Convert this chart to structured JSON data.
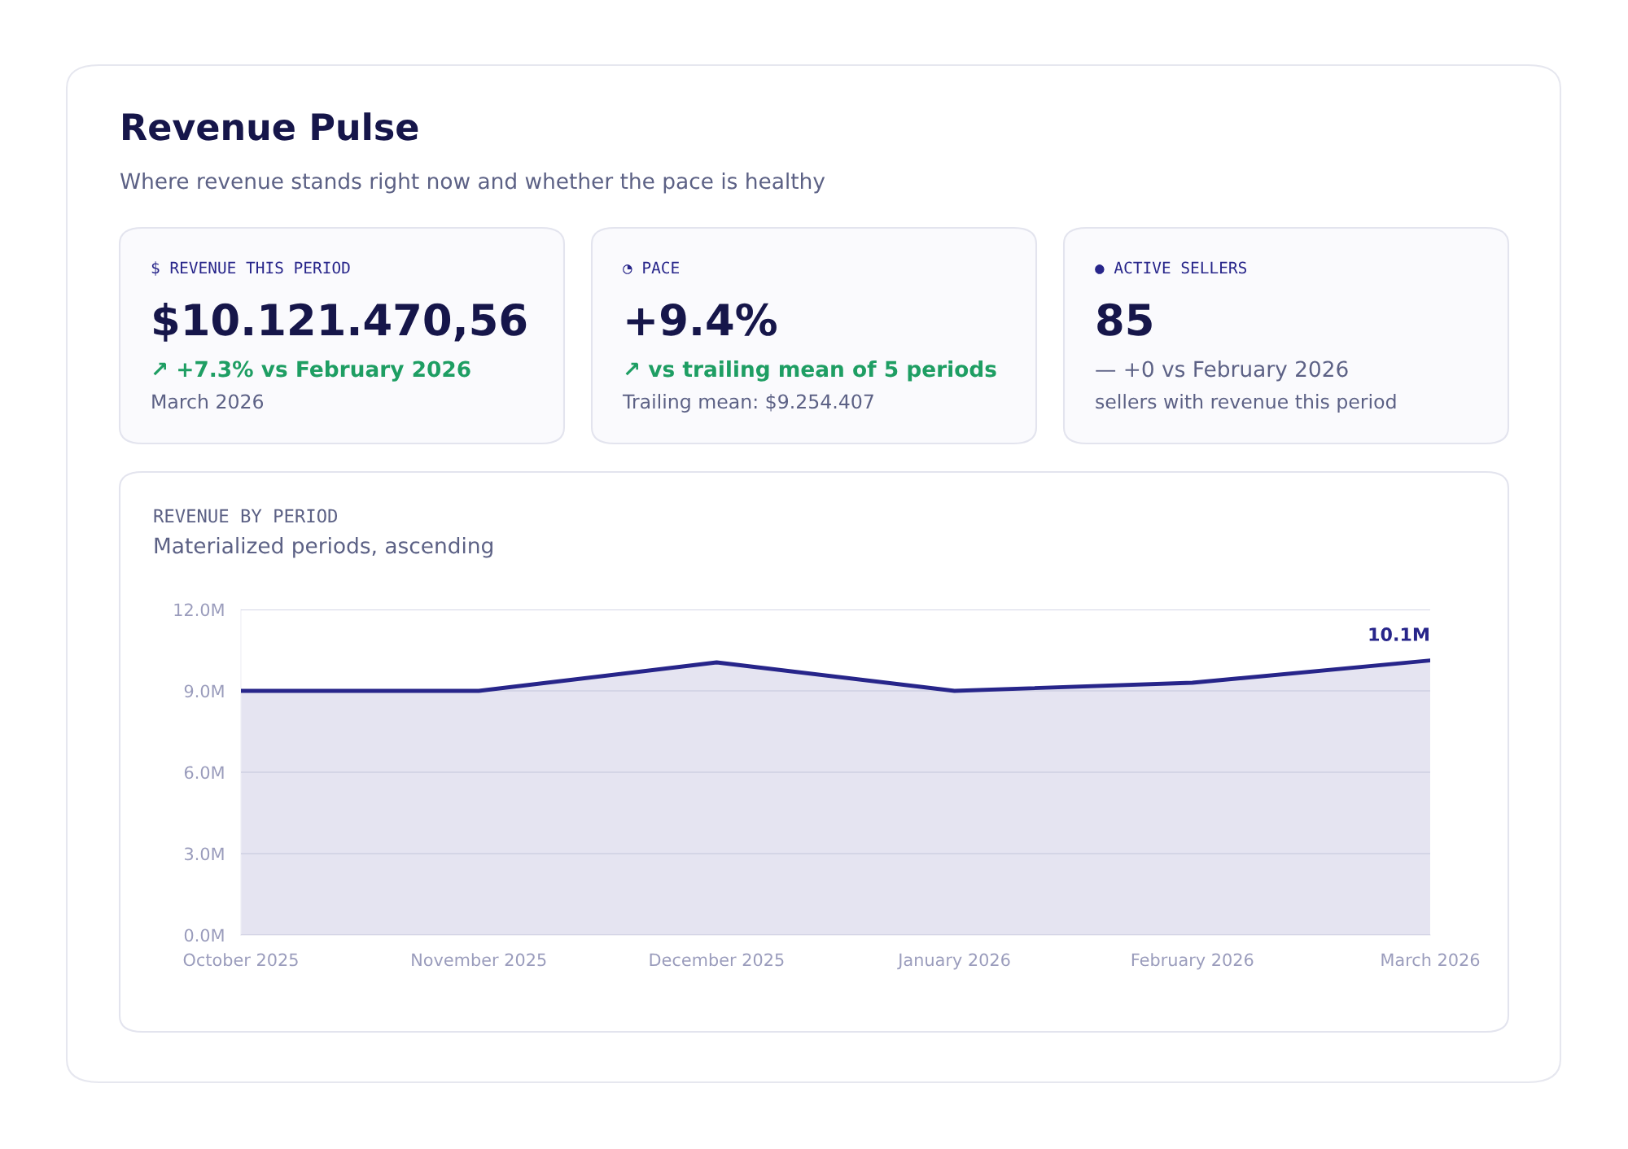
{
  "chart_data": [
    {
      "type": "other",
      "title": "Revenue Pulse",
      "subtitle": "Where revenue stands right now and whether the pace is healthy"
    },
    {
      "type": "other",
      "title": "$ REVENUE THIS PERIOD",
      "annotations": [
        "$10.121.470,56",
        "↗ +7.3% vs February 2026",
        "March 2026"
      ]
    },
    {
      "type": "other",
      "title": "◔ PACE",
      "annotations": [
        "+9.4%",
        "↗ vs trailing mean of 5 periods",
        "Trailing mean: $9.254.407"
      ]
    },
    {
      "type": "other",
      "title": "● ACTIVE SELLERS",
      "annotations": [
        "85",
        "— +0 vs February 2026",
        "sellers with revenue this period"
      ]
    },
    {
      "type": "area",
      "title": "REVENUE BY PERIOD",
      "subtitle": "Materialized periods, ascending",
      "categories": [
        "October 2025",
        "November 2025",
        "December 2025",
        "January 2026",
        "February 2026",
        "March 2026"
      ],
      "values": [
        9.0,
        9.0,
        10.05,
        9.0,
        9.3,
        10.12
      ],
      "value_labels": [
        null,
        null,
        null,
        null,
        null,
        "10.1M"
      ],
      "color": "#27258a",
      "ylim": [
        0,
        12
      ],
      "yticks": [
        {
          "value": 0,
          "label": "0.0M"
        },
        {
          "value": 3,
          "label": "3.0M"
        },
        {
          "value": 6,
          "label": "6.0M"
        },
        {
          "value": 9,
          "label": "9.0M"
        },
        {
          "value": 12,
          "label": "12.0M"
        }
      ],
      "grid": "y"
    }
  ]
}
